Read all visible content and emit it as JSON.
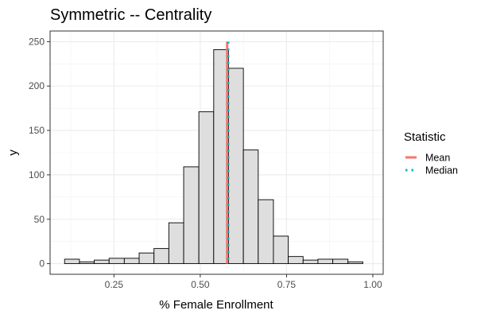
{
  "chart_data": {
    "type": "bar",
    "subtype": "histogram",
    "title": "Symmetric -- Centrality",
    "xlabel": "% Female Enrollment",
    "ylabel": "y",
    "xlim": [
      0.065,
      1.03
    ],
    "ylim": [
      -12,
      262
    ],
    "x_ticks": [
      0.25,
      0.5,
      0.75,
      1.0
    ],
    "x_tick_labels": [
      "0.25",
      "0.50",
      "0.75",
      "1.00"
    ],
    "y_ticks": [
      0,
      50,
      100,
      150,
      200,
      250
    ],
    "y_tick_labels": [
      "0",
      "50",
      "100",
      "150",
      "200",
      "250"
    ],
    "bin_width": 0.0432,
    "bins": [
      {
        "x0": 0.107,
        "x1": 0.15,
        "count": 5
      },
      {
        "x0": 0.15,
        "x1": 0.193,
        "count": 2
      },
      {
        "x0": 0.193,
        "x1": 0.236,
        "count": 4
      },
      {
        "x0": 0.236,
        "x1": 0.28,
        "count": 6
      },
      {
        "x0": 0.28,
        "x1": 0.323,
        "count": 6
      },
      {
        "x0": 0.323,
        "x1": 0.366,
        "count": 12
      },
      {
        "x0": 0.366,
        "x1": 0.409,
        "count": 17
      },
      {
        "x0": 0.409,
        "x1": 0.452,
        "count": 46
      },
      {
        "x0": 0.452,
        "x1": 0.496,
        "count": 109
      },
      {
        "x0": 0.496,
        "x1": 0.539,
        "count": 171
      },
      {
        "x0": 0.539,
        "x1": 0.582,
        "count": 241
      },
      {
        "x0": 0.582,
        "x1": 0.625,
        "count": 220
      },
      {
        "x0": 0.625,
        "x1": 0.668,
        "count": 128
      },
      {
        "x0": 0.668,
        "x1": 0.712,
        "count": 72
      },
      {
        "x0": 0.712,
        "x1": 0.755,
        "count": 31
      },
      {
        "x0": 0.755,
        "x1": 0.798,
        "count": 8
      },
      {
        "x0": 0.798,
        "x1": 0.841,
        "count": 4
      },
      {
        "x0": 0.841,
        "x1": 0.884,
        "count": 5
      },
      {
        "x0": 0.884,
        "x1": 0.928,
        "count": 5
      },
      {
        "x0": 0.928,
        "x1": 0.971,
        "count": 2
      }
    ],
    "bar_fill": "#dedede",
    "bar_stroke": "#000000",
    "vlines": [
      {
        "name": "Mean",
        "x": 0.578,
        "color": "#f8766d",
        "style": "solid"
      },
      {
        "name": "Median",
        "x": 0.581,
        "color": "#00bfc4",
        "style": "dotted"
      }
    ],
    "legend": {
      "title": "Statistic",
      "position": "right",
      "entries": [
        "Mean",
        "Median"
      ]
    },
    "grid": true,
    "panel_border": true
  }
}
